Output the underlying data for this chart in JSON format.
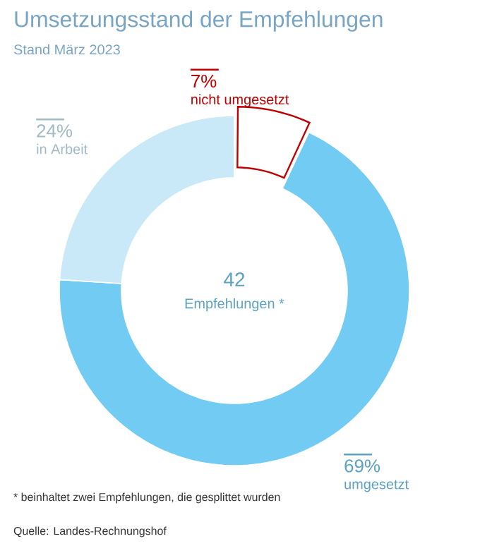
{
  "chart_data": {
    "type": "donut",
    "title": "Umsetzungsstand der Empfehlungen",
    "subtitle": "Stand März 2023",
    "categories": [
      "nicht umgesetzt",
      "umgesetzt",
      "in Arbeit"
    ],
    "values": [
      7,
      69,
      24
    ],
    "value_labels": [
      "7%",
      "69%",
      "24%"
    ],
    "colors": [
      "#ffffff",
      "#72cbf3",
      "#c9e8f8"
    ],
    "annotations": [
      "42",
      "Empfehlungen *",
      "*     beinhaltet zwei Empfehlungen, die gesplittet wurden",
      "Quelle: Landes-Rechnungshof"
    ]
  }
}
